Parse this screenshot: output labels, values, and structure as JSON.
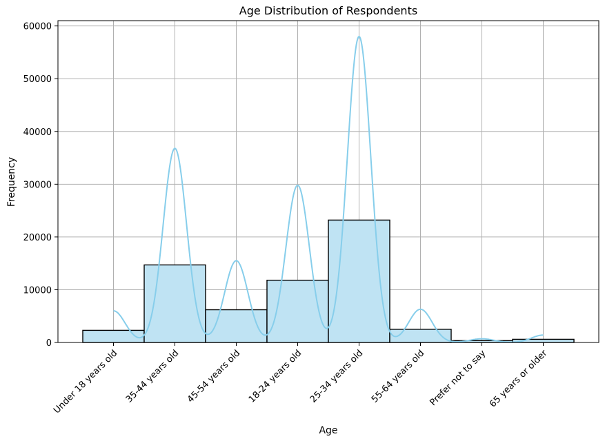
{
  "chart_data": {
    "type": "bar",
    "title": "Age Distribution of Respondents",
    "xlabel": "Age",
    "ylabel": "Frequency",
    "categories": [
      "Under 18 years old",
      "35-44 years old",
      "45-54 years old",
      "18-24 years old",
      "25-34 years old",
      "55-64 years old",
      "Prefer not to say",
      "65 years or older"
    ],
    "values": [
      2300,
      14700,
      6200,
      11800,
      23200,
      2500,
      350,
      600
    ],
    "kde_peaks": [
      6000,
      36800,
      15500,
      29800,
      58000,
      6300,
      700,
      1400
    ],
    "ylim": [
      0,
      61000
    ],
    "yticks": [
      0,
      10000,
      20000,
      30000,
      40000,
      50000,
      60000
    ],
    "grid": true,
    "colors": {
      "bar_fill": "#bfe3f3",
      "bar_edge": "#000000",
      "kde_line": "#87ceeb",
      "grid": "#b0b0b0"
    }
  }
}
